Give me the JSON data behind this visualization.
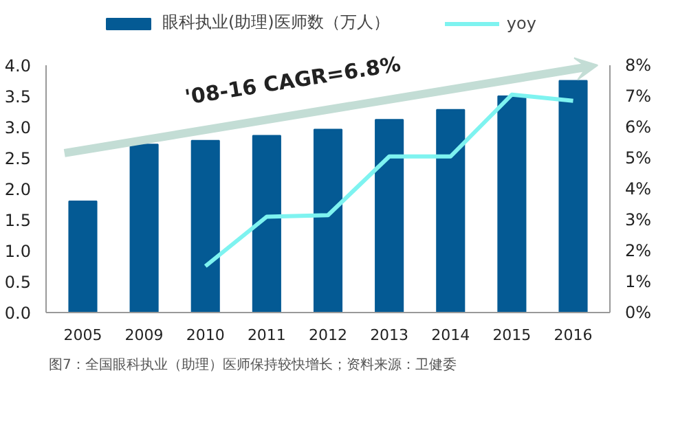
{
  "chart_data": {
    "type": "bar",
    "categories": [
      "2005",
      "2009",
      "2010",
      "2011",
      "2012",
      "2013",
      "2014",
      "2015",
      "2016"
    ],
    "series": [
      {
        "name": "眼科执业(助理)医师数（万人）",
        "color": "#045a94",
        "values": [
          1.8,
          2.72,
          2.78,
          2.86,
          2.96,
          3.12,
          3.28,
          3.5,
          3.75
        ]
      },
      {
        "name": "yoy",
        "type": "line",
        "axis": "y2",
        "color": "#7ef3f0",
        "values": [
          null,
          null,
          1.5,
          3.1,
          3.15,
          5.05,
          5.05,
          7.05,
          6.85
        ]
      }
    ],
    "ylim": [
      0,
      4
    ],
    "yticks": [
      {
        "value": 0,
        "label": "0.0"
      },
      0.5,
      {
        "value": 1,
        "label": "1.0"
      },
      1.5,
      {
        "value": 2,
        "label": "2.0"
      },
      2.5,
      {
        "value": 3,
        "label": "3.0"
      },
      3.5,
      {
        "value": 4,
        "label": "4.0"
      }
    ],
    "y2lim": [
      0,
      8
    ],
    "y2ticks": [
      {
        "value": 0,
        "label": "0%"
      },
      {
        "value": 1,
        "label": "1%"
      },
      {
        "value": 2,
        "label": "2%"
      },
      {
        "value": 3,
        "label": "3%"
      },
      {
        "value": 4,
        "label": "4%"
      },
      {
        "value": 5,
        "label": "5%"
      },
      {
        "value": 6,
        "label": "6%"
      },
      {
        "value": 7,
        "label": "7%"
      },
      {
        "value": 8,
        "label": "8%"
      }
    ],
    "annotations": [
      "'08-16 CAGR=6.8%",
      "图7：全国眼科执业（助理）医师保持较快增长；资料来源：卫健委"
    ],
    "legend": "top",
    "grid": false,
    "marker": "none",
    "line_style": "solid"
  }
}
